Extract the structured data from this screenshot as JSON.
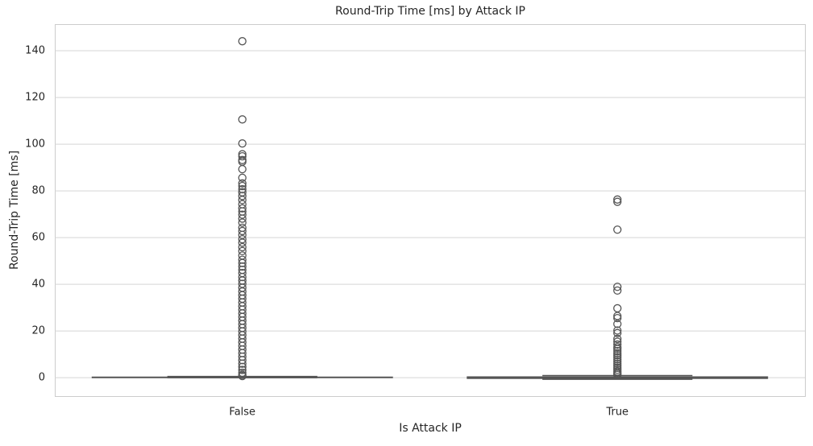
{
  "chart_data": {
    "type": "box",
    "title": "Round-Trip Time [ms] by Attack IP",
    "x_label": "Is Attack IP",
    "y_label": "Round-Trip Time [ms]",
    "categories": [
      "False",
      "True"
    ],
    "boxes": [
      {
        "whislo": 0,
        "q1": 0.05,
        "med": 0.1,
        "q3": 0.2,
        "whishi": 0.5,
        "fliers": [
          144.1,
          110.6,
          100.3,
          95.7,
          94.8,
          93.2,
          92.5,
          89.3,
          85.6,
          83.2,
          82.1,
          80.7,
          79.4,
          77.8,
          76.1,
          74.3,
          72.5,
          71.2,
          69.8,
          68.1,
          66.4,
          64.2,
          62.8,
          61.1,
          59.3,
          57.8,
          55.9,
          54.2,
          52.3,
          50.5,
          49.1,
          47.6,
          46.2,
          44.8,
          43.1,
          41.6,
          40.2,
          38.5,
          36.9,
          35.3,
          33.8,
          32.2,
          30.6,
          29.1,
          27.5,
          26.0,
          24.4,
          22.9,
          21.3,
          19.8,
          18.2,
          16.7,
          15.1,
          13.6,
          12.0,
          10.5,
          9.0,
          7.5,
          6.0,
          4.6,
          3.3,
          2.1,
          1.2,
          0.7
        ]
      },
      {
        "whislo": -0.7,
        "q1": -0.3,
        "med": 0,
        "q3": 0.3,
        "whishi": 0.9,
        "fliers": [
          76.3,
          75.3,
          63.4,
          38.9,
          37.3,
          29.7,
          26.4,
          25.5,
          23.0,
          20.2,
          19.1,
          16.6,
          15.4,
          14.2,
          13.1,
          12.3,
          11.4,
          10.5,
          9.6,
          8.7,
          7.8,
          6.9,
          6.0,
          5.1,
          4.2,
          3.4,
          2.6,
          1.9,
          1.3
        ]
      }
    ],
    "color": "#555555",
    "ylim": [
      -7.9,
      151.4
    ],
    "yticks": [
      0,
      20,
      40,
      60,
      80,
      100,
      120,
      140
    ],
    "grid": true
  }
}
